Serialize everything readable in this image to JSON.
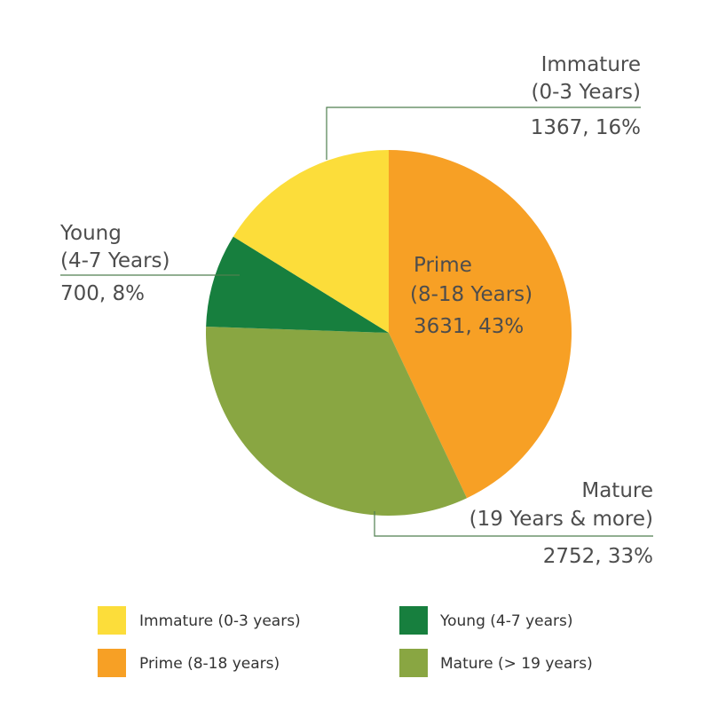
{
  "chart_data": {
    "type": "pie",
    "title": "",
    "slices": [
      {
        "key": "prime",
        "label": "Prime",
        "sub_label": "(8-18 Years)",
        "value": 3631,
        "percent": 43,
        "value_text": "3631, 43%",
        "legend_label": "Prime (8-18 years)",
        "color": "#f7a025"
      },
      {
        "key": "mature",
        "label": "Mature",
        "sub_label": "(19 Years & more)",
        "value": 2752,
        "percent": 33,
        "value_text": "2752, 33%",
        "legend_label": "Mature (> 19 years)",
        "color": "#89a642"
      },
      {
        "key": "young",
        "label": "Young",
        "sub_label": "(4-7 Years)",
        "value": 700,
        "percent": 8,
        "value_text": "700, 8%",
        "legend_label": "Young (4-7 years)",
        "color": "#177f3e"
      },
      {
        "key": "immature",
        "label": "Immature",
        "sub_label": "(0-3 Years)",
        "value": 1367,
        "percent": 16,
        "value_text": "1367, 16%",
        "legend_label": "Immature (0-3 years)",
        "color": "#fcdd3a"
      }
    ],
    "legend_order": [
      "immature",
      "young",
      "prime",
      "mature"
    ],
    "legend_position": "bottom"
  }
}
